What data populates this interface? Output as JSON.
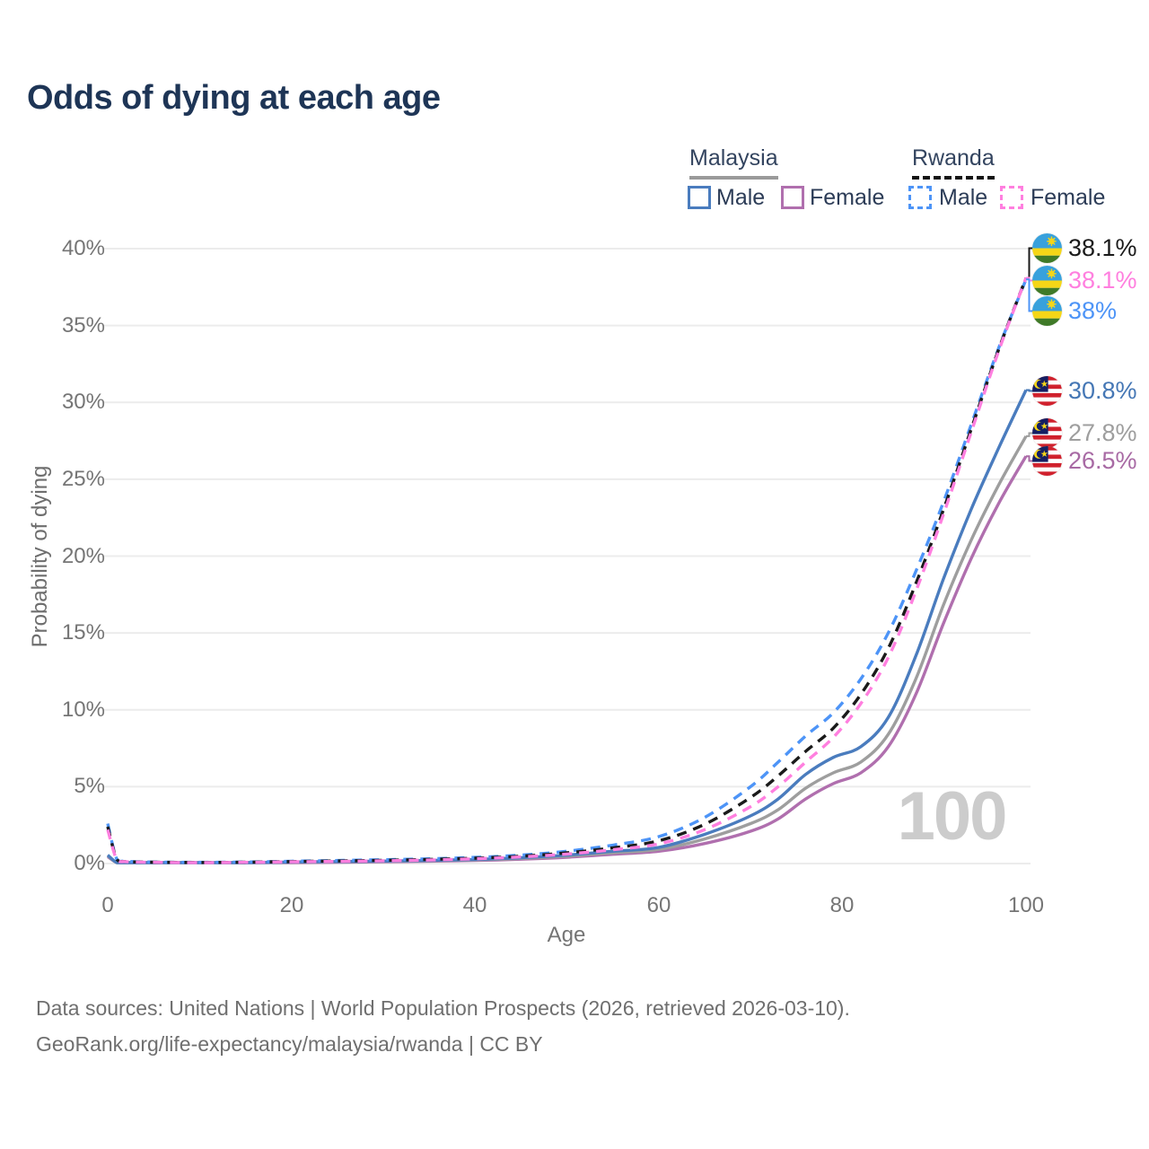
{
  "title": "Odds of dying at each age",
  "watermark": "100",
  "legend": {
    "groups": [
      {
        "country": "Malaysia",
        "line_style": "solid",
        "underline_color": "#9a9a9a",
        "items": [
          {
            "label": "Male",
            "color": "#4a7cbe"
          },
          {
            "label": "Female",
            "color": "#b06fae"
          }
        ]
      },
      {
        "country": "Rwanda",
        "line_style": "dashed",
        "underline_color": "#141414",
        "items": [
          {
            "label": "Male",
            "color": "#4d94f7"
          },
          {
            "label": "Female",
            "color": "#ff7fdf"
          }
        ]
      }
    ]
  },
  "footer": {
    "line1": "Data sources: United Nations | World Population Prospects (2026, retrieved 2026-03-10).",
    "line2": "GeoRank.org/life-expectancy/malaysia/rwanda | CC BY"
  },
  "chart_data": {
    "type": "line",
    "title": "Odds of dying at each age",
    "xlabel": "Age",
    "ylabel": "Probability of dying",
    "xlim": [
      0,
      100
    ],
    "ylim": [
      0,
      40
    ],
    "grid": "horizontal",
    "xticks": [
      0,
      20,
      40,
      60,
      80,
      100
    ],
    "yticks": [
      0,
      5,
      10,
      15,
      20,
      25,
      30,
      35,
      40
    ],
    "ytick_labels": [
      "0%",
      "5%",
      "10%",
      "15%",
      "20%",
      "25%",
      "30%",
      "35%",
      "40%"
    ],
    "x": [
      0,
      1,
      2,
      5,
      10,
      15,
      20,
      25,
      30,
      35,
      40,
      45,
      50,
      55,
      60,
      65,
      70,
      73,
      76,
      79,
      82,
      85,
      88,
      91,
      94,
      97,
      100
    ],
    "series": [
      {
        "name": "Malaysia Female",
        "country": "Malaysia",
        "sex": "female",
        "dash": false,
        "color": "#b06fae",
        "values": [
          0.45,
          0.05,
          0.034,
          0.025,
          0.025,
          0.04,
          0.06,
          0.08,
          0.11,
          0.15,
          0.2,
          0.28,
          0.41,
          0.6,
          0.8,
          1.3,
          2.1,
          2.9,
          4.2,
          5.2,
          5.9,
          7.6,
          11.0,
          15.6,
          19.8,
          23.4,
          26.5
        ]
      },
      {
        "name": "Malaysia",
        "country": "Malaysia",
        "sex": "both",
        "dash": false,
        "color": "#9e9e9e",
        "values": [
          0.5,
          0.055,
          0.037,
          0.027,
          0.027,
          0.05,
          0.08,
          0.11,
          0.14,
          0.18,
          0.24,
          0.33,
          0.48,
          0.7,
          0.92,
          1.6,
          2.6,
          3.5,
          4.9,
          5.9,
          6.6,
          8.4,
          12.0,
          16.8,
          21.0,
          24.6,
          27.8
        ]
      },
      {
        "name": "Malaysia Male",
        "country": "Malaysia",
        "sex": "male",
        "dash": false,
        "color": "#4a7cbe",
        "values": [
          0.55,
          0.06,
          0.04,
          0.03,
          0.03,
          0.06,
          0.1,
          0.13,
          0.16,
          0.2,
          0.27,
          0.38,
          0.55,
          0.8,
          1.05,
          1.9,
          3.1,
          4.2,
          5.8,
          6.9,
          7.6,
          9.5,
          13.5,
          18.5,
          23.0,
          27.0,
          30.8
        ]
      },
      {
        "name": "Rwanda Male",
        "country": "Rwanda",
        "sex": "male",
        "dash": true,
        "color": "#4d94f7",
        "values": [
          2.6,
          0.28,
          0.15,
          0.1,
          0.08,
          0.1,
          0.15,
          0.2,
          0.25,
          0.31,
          0.4,
          0.55,
          0.8,
          1.2,
          1.75,
          3.0,
          5.0,
          6.6,
          8.3,
          9.8,
          12.0,
          15.0,
          19.0,
          23.5,
          28.5,
          33.5,
          38.0
        ]
      },
      {
        "name": "Rwanda",
        "country": "Rwanda",
        "sex": "both",
        "dash": true,
        "color": "#1a1a1a",
        "values": [
          2.4,
          0.26,
          0.13,
          0.09,
          0.07,
          0.09,
          0.13,
          0.17,
          0.21,
          0.27,
          0.35,
          0.48,
          0.7,
          1.02,
          1.48,
          2.55,
          4.3,
          5.7,
          7.3,
          8.8,
          11.0,
          14.0,
          18.2,
          23.0,
          28.2,
          33.4,
          38.1
        ]
      },
      {
        "name": "Rwanda Female",
        "country": "Rwanda",
        "sex": "female",
        "dash": true,
        "color": "#ff7fdf",
        "values": [
          2.2,
          0.24,
          0.12,
          0.08,
          0.06,
          0.08,
          0.11,
          0.14,
          0.18,
          0.23,
          0.31,
          0.43,
          0.62,
          0.9,
          1.28,
          2.2,
          3.7,
          5.0,
          6.6,
          8.2,
          10.4,
          13.4,
          17.7,
          22.7,
          28.0,
          33.3,
          38.1
        ]
      }
    ],
    "end_labels": [
      {
        "flag": "rwanda",
        "text": "38.1%",
        "color": "#1a1a1a",
        "value": 38.1
      },
      {
        "flag": "rwanda",
        "text": "38.1%",
        "color": "#ff7fdf",
        "value": 38.1
      },
      {
        "flag": "rwanda",
        "text": "38%",
        "color": "#4d94f7",
        "value": 38.0
      },
      {
        "flag": "malaysia",
        "text": "30.8%",
        "color": "#4577b5",
        "value": 30.8
      },
      {
        "flag": "malaysia",
        "text": "27.8%",
        "color": "#9e9e9e",
        "value": 27.8
      },
      {
        "flag": "malaysia",
        "text": "26.5%",
        "color": "#a86aa4",
        "value": 26.5
      }
    ]
  }
}
